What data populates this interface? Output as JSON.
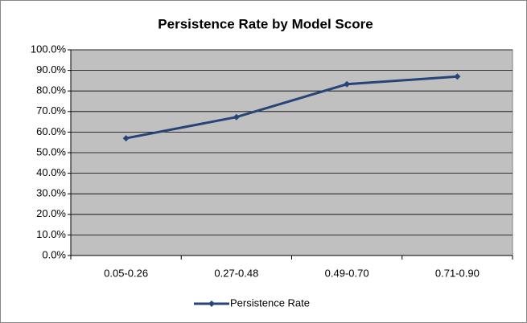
{
  "chart_data": {
    "type": "line",
    "title": "Persistence Rate by Model Score",
    "categories": [
      "0.05-0.26",
      "0.27-0.48",
      "0.49-0.70",
      "0.71-0.90"
    ],
    "series": [
      {
        "name": "Persistence Rate",
        "color": "#264478",
        "values": [
          57,
          67.3,
          83.3,
          87
        ]
      }
    ],
    "ylim": [
      0,
      100
    ],
    "yticks": [
      {
        "value": 0,
        "label": "0.0%"
      },
      {
        "value": 10,
        "label": "10.0%"
      },
      {
        "value": 20,
        "label": "20.0%"
      },
      {
        "value": 30,
        "label": "30.0%"
      },
      {
        "value": 40,
        "label": "40.0%"
      },
      {
        "value": 50,
        "label": "50.0%"
      },
      {
        "value": 60,
        "label": "60.0%"
      },
      {
        "value": 70,
        "label": "70.0%"
      },
      {
        "value": 80,
        "label": "80.0%"
      },
      {
        "value": 90,
        "label": "90.0%"
      },
      {
        "value": 100,
        "label": "100.0%"
      }
    ],
    "grid": true,
    "legend": "bottom",
    "plot_background": "#c0c0c0"
  }
}
